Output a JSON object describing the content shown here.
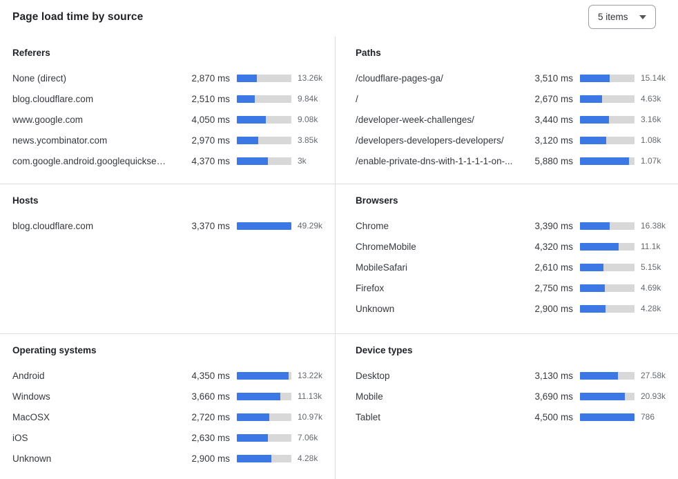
{
  "header": {
    "title": "Page load time by source",
    "items_select": {
      "value": "5 items"
    }
  },
  "colors": {
    "bar_fill": "#3c77e6",
    "bar_track": "#d8d8d8",
    "divider": "#dcdde0"
  },
  "chart_data": [
    {
      "type": "bar",
      "orientation": "horizontal",
      "title": "Referers",
      "unit": "ms",
      "categories": [
        "None (direct)",
        "blog.cloudflare.com",
        "www.google.com",
        "news.ycombinator.com",
        "com.google.android.googlequicksearc..."
      ],
      "values_ms": [
        2870,
        2510,
        4050,
        2970,
        4370
      ],
      "value_labels": [
        "2,870 ms",
        "2,510 ms",
        "4,050 ms",
        "2,970 ms",
        "4,370 ms"
      ],
      "counts": [
        "13.26k",
        "9.84k",
        "9.08k",
        "3.85k",
        "3k"
      ],
      "bar_pct": [
        37,
        33,
        53,
        39,
        57
      ]
    },
    {
      "type": "bar",
      "orientation": "horizontal",
      "title": "Paths",
      "unit": "ms",
      "categories": [
        "/cloudflare-pages-ga/",
        "/",
        "/developer-week-challenges/",
        "/developers-developers-developers/",
        "/enable-private-dns-with-1-1-1-1-on-..."
      ],
      "values_ms": [
        3510,
        2670,
        3440,
        3120,
        5880
      ],
      "value_labels": [
        "3,510 ms",
        "2,670 ms",
        "3,440 ms",
        "3,120 ms",
        "5,880 ms"
      ],
      "counts": [
        "15.14k",
        "4.63k",
        "3.16k",
        "1.08k",
        "1.07k"
      ],
      "bar_pct": [
        54,
        41,
        53,
        48,
        90
      ]
    },
    {
      "type": "bar",
      "orientation": "horizontal",
      "title": "Hosts",
      "unit": "ms",
      "categories": [
        "blog.cloudflare.com"
      ],
      "values_ms": [
        3370
      ],
      "value_labels": [
        "3,370 ms"
      ],
      "counts": [
        "49.29k"
      ],
      "bar_pct": [
        100
      ]
    },
    {
      "type": "bar",
      "orientation": "horizontal",
      "title": "Browsers",
      "unit": "ms",
      "categories": [
        "Chrome",
        "ChromeMobile",
        "MobileSafari",
        "Firefox",
        "Unknown"
      ],
      "values_ms": [
        3390,
        4320,
        2610,
        2750,
        2900
      ],
      "value_labels": [
        "3,390 ms",
        "4,320 ms",
        "2,610 ms",
        "2,750 ms",
        "2,900 ms"
      ],
      "counts": [
        "16.38k",
        "11.1k",
        "5.15k",
        "4.69k",
        "4.28k"
      ],
      "bar_pct": [
        55,
        71,
        43,
        45,
        47
      ]
    },
    {
      "type": "bar",
      "orientation": "horizontal",
      "title": "Operating systems",
      "unit": "ms",
      "categories": [
        "Android",
        "Windows",
        "MacOSX",
        "iOS",
        "Unknown"
      ],
      "values_ms": [
        4350,
        3660,
        2720,
        2630,
        2900
      ],
      "value_labels": [
        "4,350 ms",
        "3,660 ms",
        "2,720 ms",
        "2,630 ms",
        "2,900 ms"
      ],
      "counts": [
        "13.22k",
        "11.13k",
        "10.97k",
        "7.06k",
        "4.28k"
      ],
      "bar_pct": [
        95,
        80,
        59,
        57,
        63
      ]
    },
    {
      "type": "bar",
      "orientation": "horizontal",
      "title": "Device types",
      "unit": "ms",
      "categories": [
        "Desktop",
        "Mobile",
        "Tablet"
      ],
      "values_ms": [
        3130,
        3690,
        4500
      ],
      "value_labels": [
        "3,130 ms",
        "3,690 ms",
        "4,500 ms"
      ],
      "counts": [
        "27.58k",
        "20.93k",
        "786"
      ],
      "bar_pct": [
        70,
        82,
        100
      ]
    }
  ]
}
